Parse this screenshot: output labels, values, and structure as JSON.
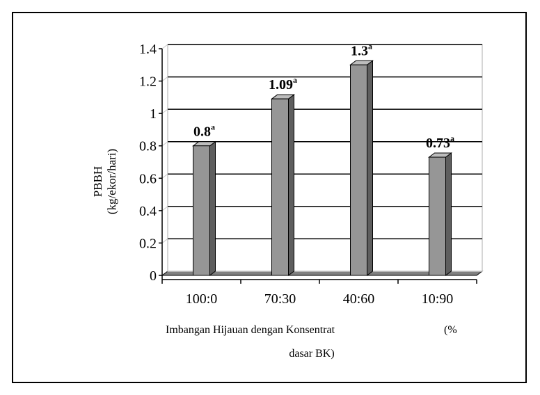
{
  "chart_data": {
    "type": "bar",
    "categories": [
      "100:0",
      "70:30",
      "40:60",
      "10:90"
    ],
    "values": [
      0.8,
      1.09,
      1.3,
      0.73
    ],
    "data_labels": [
      "0.8",
      "1.09",
      "1.3",
      "0.73"
    ],
    "data_label_superscripts": [
      "a",
      "a",
      "a",
      "a"
    ],
    "ylabel_line1": "PBBH",
    "ylabel_line2": "(kg/ekor/hari)",
    "xlabel_line1": "Imbangan Hijauan dengan Konsentrat",
    "xlabel_line1_suffix": "(%",
    "xlabel_line2": "dasar BK)",
    "ylim": [
      0,
      1.4
    ],
    "yticks": [
      0,
      0.2,
      0.4,
      0.6,
      0.8,
      1,
      1.2,
      1.4
    ],
    "ytick_labels": [
      "0",
      "0.2",
      "0.4",
      "0.6",
      "0.8",
      "1",
      "1.2",
      "1.4"
    ],
    "grid": true,
    "legend": "none",
    "style": "3d-column",
    "colors": {
      "bar_front": "#969696",
      "bar_side": "#5e5e5e",
      "bar_top": "#bdbdbd",
      "floor": "#808080",
      "wall": "#c8c8c8",
      "grid": "#000000"
    }
  }
}
